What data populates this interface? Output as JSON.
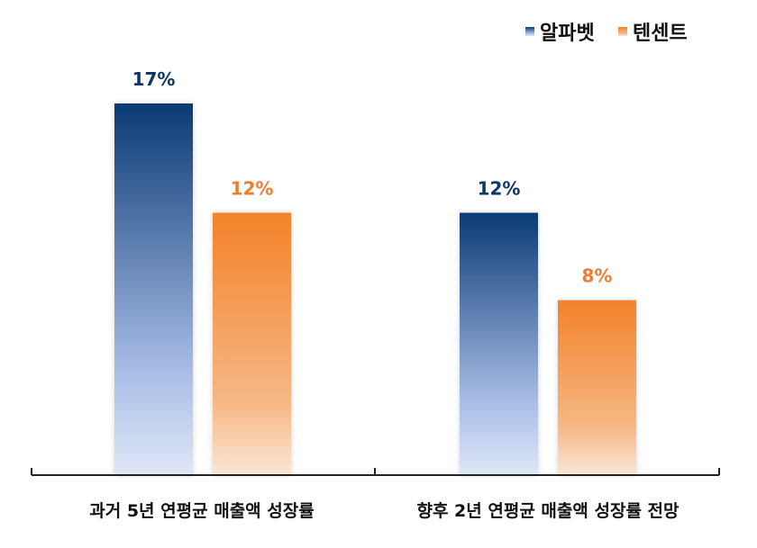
{
  "chart_data": {
    "type": "bar",
    "title": "",
    "xlabel": "",
    "ylabel": "",
    "categories": [
      "과거 5년 연평균 매출액 성장률",
      "향후 2년 연평균 매출액 성장률 전망"
    ],
    "series": [
      {
        "name": "알파벳",
        "values": [
          17,
          12
        ],
        "labels": [
          "17%",
          "12%"
        ],
        "color_top": "#0b3a74",
        "color_mid": "#a8bde6",
        "color_bottom": "#dfe7f7",
        "label_color": "#0d3567"
      },
      {
        "name": "텐센트",
        "values": [
          12,
          8
        ],
        "labels": [
          "12%",
          "8%"
        ],
        "color_top": "#f2832a",
        "color_mid": "#f6b784",
        "color_bottom": "#fbe6d6",
        "label_color": "#ed7d31"
      }
    ],
    "ylim": [
      0,
      17
    ],
    "grid": false,
    "legend_position": "top-right"
  }
}
